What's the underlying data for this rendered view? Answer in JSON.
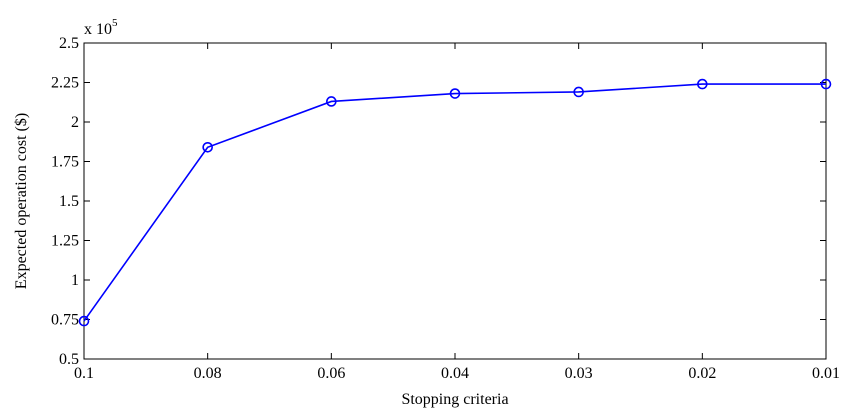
{
  "chart_data": {
    "type": "line",
    "xlabel": "Stopping criteria",
    "ylabel": "Expected operation cost ($)",
    "y_multiplier_base": "x 10",
    "y_multiplier_exponent": "5",
    "categories": [
      "0.1",
      "0.08",
      "0.06",
      "0.04",
      "0.03",
      "0.02",
      "0.01"
    ],
    "series": [
      {
        "values": [
          0.74,
          1.84,
          2.13,
          2.18,
          2.19,
          2.24,
          2.24
        ],
        "color": "#0000ff",
        "marker": "circle"
      }
    ],
    "yticks": [
      "0.5",
      "0.75",
      "1",
      "1.25",
      "1.5",
      "1.75",
      "2",
      "2.25",
      "2.5"
    ],
    "ylim": [
      0.5,
      2.5
    ],
    "grid": false,
    "legend": "none"
  }
}
